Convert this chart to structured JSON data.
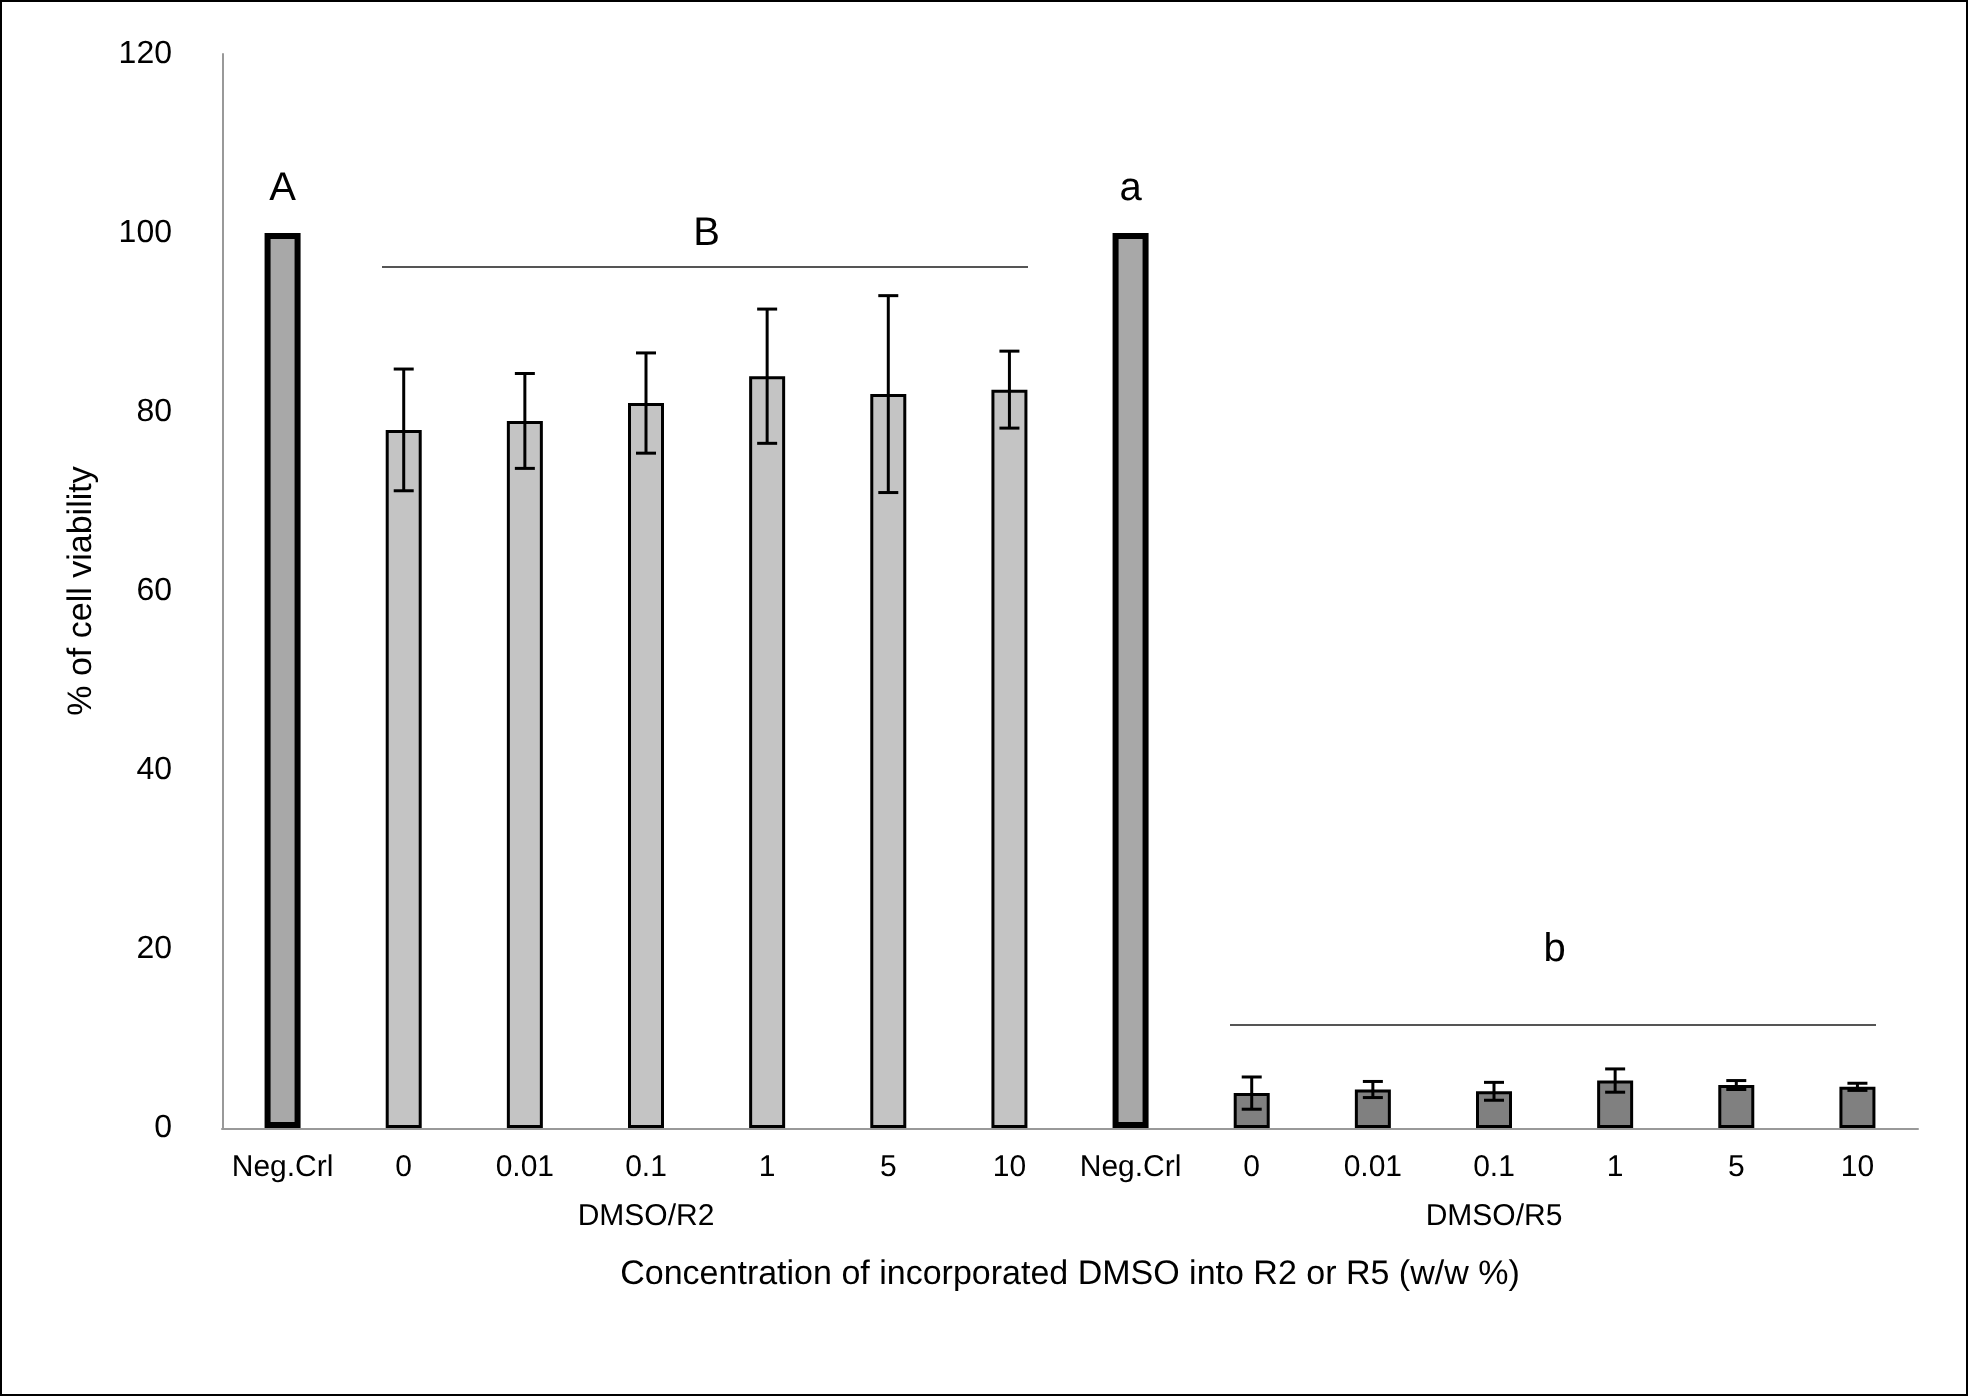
{
  "chart_data": {
    "type": "bar",
    "categories": [
      "Neg.Crl",
      "0",
      "0.01",
      "0.1",
      "1",
      "5",
      "10",
      "Neg.Crl",
      "0",
      "0.01",
      "0.1",
      "1",
      "5",
      "10"
    ],
    "values": [
      100,
      78,
      79,
      81,
      84,
      82,
      82.5,
      100,
      3.9,
      4.3,
      4.1,
      5.3,
      4.8,
      4.6
    ],
    "errors": [
      null,
      6.8,
      5.3,
      5.6,
      7.5,
      11,
      4.3,
      null,
      1.8,
      0.9,
      1,
      1.3,
      0.5,
      0.4
    ],
    "colors": [
      "#a8a8a8",
      "#c4c4c4",
      "#c4c4c4",
      "#c4c4c4",
      "#c4c4c4",
      "#c4c4c4",
      "#c4c4c4",
      "#a8a8a8",
      "#808080",
      "#808080",
      "#808080",
      "#808080",
      "#808080",
      "#808080"
    ],
    "xlabel": "Concentration of incorporated DMSO into R2 or R5 (w/w %)",
    "ylabel": "% of cell viability",
    "ylim": [
      0,
      120
    ],
    "yticks": [
      0,
      20,
      40,
      60,
      80,
      100,
      120
    ],
    "annotations": [
      "A",
      "B",
      "a",
      "b",
      "DMSO/R2",
      "DMSO/R5"
    ],
    "grid": false
  }
}
